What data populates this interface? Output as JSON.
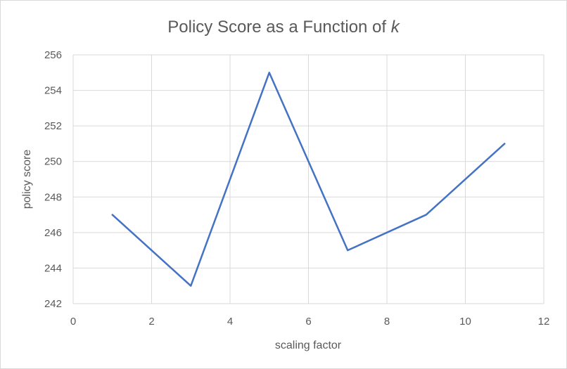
{
  "chart_data": {
    "type": "line",
    "title_main": "Policy Score as a Function of ",
    "title_var": "k",
    "xlabel": "scaling factor",
    "ylabel": "policy score",
    "xlim": [
      0,
      12
    ],
    "ylim": [
      242,
      256
    ],
    "x_ticks": [
      "0",
      "2",
      "4",
      "6",
      "8",
      "10",
      "12"
    ],
    "y_ticks": [
      "242",
      "244",
      "246",
      "248",
      "250",
      "252",
      "254",
      "256"
    ],
    "x_tick_values": [
      0,
      2,
      4,
      6,
      8,
      10,
      12
    ],
    "y_tick_values": [
      242,
      244,
      246,
      248,
      250,
      252,
      254,
      256
    ],
    "grid": true,
    "series": [
      {
        "x": [
          1,
          3,
          5,
          7,
          9,
          11
        ],
        "values": [
          247,
          243,
          255,
          245,
          247,
          251
        ],
        "color": "#4472c4"
      }
    ]
  }
}
